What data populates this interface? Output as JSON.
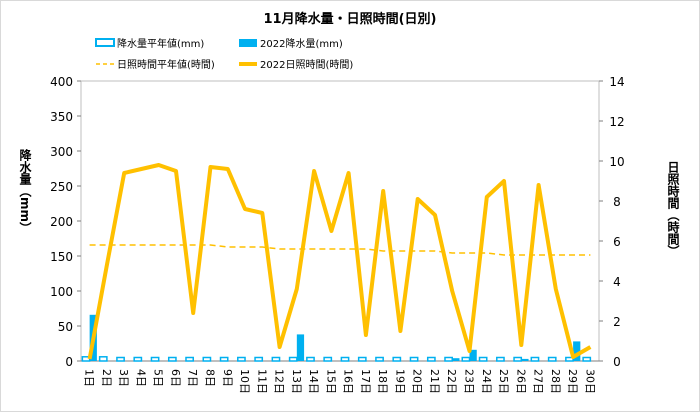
{
  "chart_data": {
    "type": "bar",
    "title": "11月降水量・日照時間(日別)",
    "categories": [
      "1日",
      "2日",
      "3日",
      "4日",
      "5日",
      "6日",
      "7日",
      "8日",
      "9日",
      "10日",
      "11日",
      "12日",
      "13日",
      "14日",
      "15日",
      "16日",
      "17日",
      "18日",
      "19日",
      "20日",
      "21日",
      "22日",
      "23日",
      "24日",
      "25日",
      "26日",
      "27日",
      "28日",
      "29日",
      "30日"
    ],
    "y_left": {
      "label": "降水量（mm）",
      "range": [
        0,
        400
      ],
      "ticks": [
        0,
        50,
        100,
        150,
        200,
        250,
        300,
        350,
        400
      ]
    },
    "y_right": {
      "label": "日照時間（時間）",
      "range": [
        0,
        14
      ],
      "ticks": [
        0,
        2,
        4,
        6,
        8,
        10,
        12,
        14
      ]
    },
    "series": [
      {
        "name": "降水量平年値(mm)",
        "kind": "bar",
        "axis": "left",
        "color": "#00b0f0",
        "style": "outline",
        "values": [
          6,
          6,
          5,
          5,
          5,
          5,
          5,
          5,
          5,
          5,
          5,
          5,
          5,
          5,
          5,
          5,
          5,
          5,
          5,
          5,
          5,
          5,
          5,
          5,
          5,
          5,
          5,
          5,
          5,
          5
        ]
      },
      {
        "name": "2022降水量(mm)",
        "kind": "bar",
        "axis": "left",
        "color": "#00b0f0",
        "style": "solid",
        "values": [
          66,
          0,
          0,
          0,
          0,
          0,
          0,
          0,
          0,
          0,
          0,
          0,
          38,
          0,
          0,
          0,
          0,
          0,
          0,
          0,
          0,
          4,
          16,
          0,
          0,
          3,
          0,
          0,
          28,
          0
        ]
      },
      {
        "name": "日照時間平年値(時間)",
        "kind": "line",
        "axis": "right",
        "color": "#ffc000",
        "style": "dashed",
        "values": [
          5.8,
          5.8,
          5.8,
          5.8,
          5.8,
          5.8,
          5.8,
          5.8,
          5.7,
          5.7,
          5.7,
          5.6,
          5.6,
          5.6,
          5.6,
          5.6,
          5.6,
          5.5,
          5.5,
          5.5,
          5.5,
          5.4,
          5.4,
          5.4,
          5.3,
          5.3,
          5.3,
          5.3,
          5.3,
          5.3
        ]
      },
      {
        "name": "2022日照時間(時間)",
        "kind": "line",
        "axis": "right",
        "color": "#ffc000",
        "style": "solid",
        "values": [
          0.1,
          4.8,
          9.4,
          9.6,
          9.8,
          9.5,
          2.4,
          9.7,
          9.6,
          7.6,
          7.4,
          0.7,
          3.6,
          9.5,
          6.5,
          9.4,
          1.3,
          8.5,
          1.5,
          8.1,
          7.3,
          3.5,
          0.5,
          8.2,
          9.0,
          0.8,
          8.8,
          3.6,
          0.2,
          0.7
        ]
      }
    ]
  }
}
